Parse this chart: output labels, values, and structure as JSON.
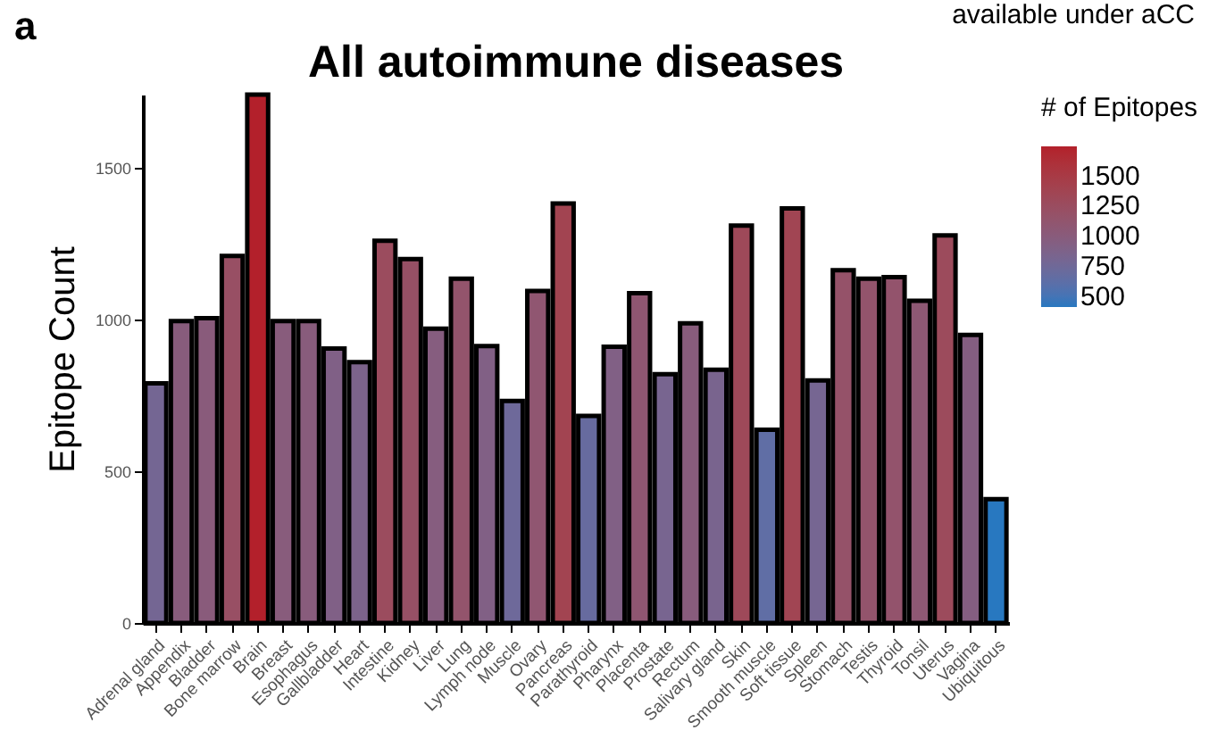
{
  "chart_data": {
    "type": "bar",
    "title": "All autoimmune diseases",
    "ylabel": "Epitope Count",
    "legend_title": "# of Epitopes",
    "annotations": [
      "a",
      "available under aCC"
    ],
    "categories": [
      "Adrenal gland",
      "Appendix",
      "Bladder",
      "Bone marrow",
      "Brain",
      "Breast",
      "Esophagus",
      "Gallbladder",
      "Heart",
      "Intestine",
      "Kidney",
      "Liver",
      "Lung",
      "Lymph node",
      "Muscle",
      "Ovary",
      "Pancreas",
      "Parathyroid",
      "Pharynx",
      "Placenta",
      "Prostate",
      "Rectum",
      "Salivary gland",
      "Skin",
      "Smooth muscle",
      "Soft tissue",
      "Spleen",
      "Stomach",
      "Testis",
      "Thyroid",
      "Tonsil",
      "Uterus",
      "Vagina",
      "Ubiquitous"
    ],
    "values": [
      790,
      995,
      1005,
      1210,
      1742,
      995,
      995,
      905,
      860,
      1260,
      1200,
      970,
      1135,
      913,
      732,
      1095,
      1383,
      683,
      911,
      1087,
      820,
      988,
      835,
      1310,
      637,
      1367,
      800,
      1163,
      1135,
      1140,
      1062,
      1278,
      950,
      408
    ],
    "ylim": [
      0,
      1742
    ],
    "yticks": [
      0,
      500,
      1000,
      1500
    ],
    "clim": [
      408,
      1742
    ],
    "cticks": [
      500,
      750,
      1000,
      1250,
      1500
    ],
    "grid": false
  }
}
